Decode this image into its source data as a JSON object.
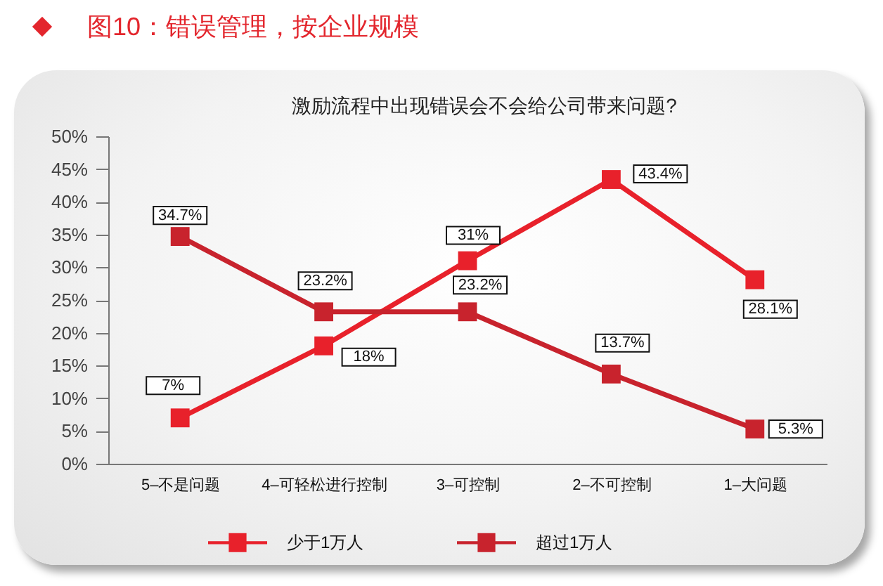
{
  "chart_data": {
    "type": "line",
    "title": "图10：错误管理，按企业规模",
    "subtitle": "激励流程中出现错误会不会给公司带来问题?",
    "categories": [
      "5–不是问题",
      "4–可轻松进行控制",
      "3–可控制",
      "2–不可控制",
      "1–大问题"
    ],
    "series": [
      {
        "name": "少于1万人",
        "color": "#e8212b",
        "values": [
          7,
          18,
          31,
          43.4,
          28.1
        ],
        "value_labels": [
          "7%",
          "18%",
          "31%",
          "43.4%",
          "28.1%"
        ]
      },
      {
        "name": "超过1万人",
        "color": "#c8232d",
        "values": [
          34.7,
          23.2,
          23.2,
          13.7,
          5.3
        ],
        "value_labels": [
          "34.7%",
          "23.2%",
          "23.2%",
          "13.7%",
          "5.3%"
        ]
      }
    ],
    "ylim": [
      0,
      50
    ],
    "yticks": [
      {
        "value": 0,
        "label": "0%"
      },
      {
        "value": 5,
        "label": "5%"
      },
      {
        "value": 10,
        "label": "10%"
      },
      {
        "value": 15,
        "label": "15%"
      },
      {
        "value": 20,
        "label": "20%"
      },
      {
        "value": 25,
        "label": "25%"
      },
      {
        "value": 30,
        "label": "30%"
      },
      {
        "value": 35,
        "label": "35%"
      },
      {
        "value": 40,
        "label": "40%"
      },
      {
        "value": 45,
        "label": "45%"
      },
      {
        "value": 50,
        "label": "50%"
      }
    ],
    "grid": false,
    "legend": "bottom",
    "marker": "square",
    "line_style": "solid"
  }
}
